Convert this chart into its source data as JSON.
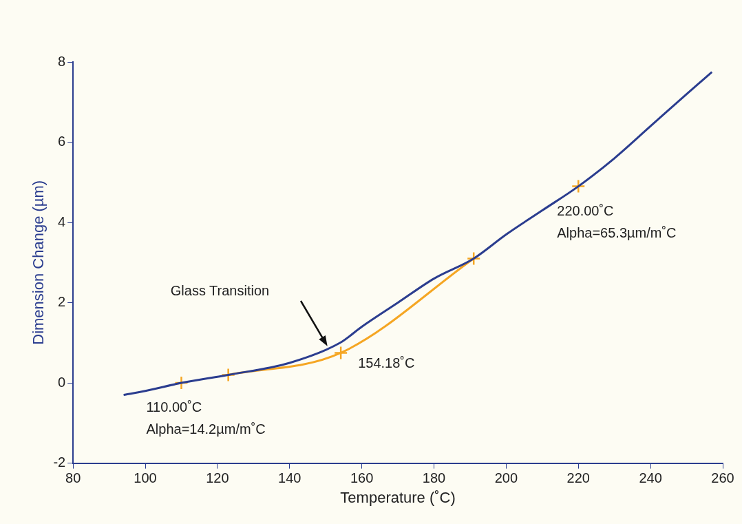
{
  "chart_data": {
    "type": "line",
    "xlabel": "Temperature (˚C)",
    "ylabel": "Dimension Change (µm)",
    "xlim": [
      80,
      260
    ],
    "xticks": [
      80,
      100,
      120,
      140,
      160,
      180,
      200,
      220,
      240,
      260
    ],
    "ylim": [
      -2,
      8
    ],
    "yticks": [
      -2,
      0,
      2,
      4,
      6,
      8
    ],
    "grid": false,
    "legend": false,
    "series": [
      {
        "color": "#2b3d8f",
        "marker": "none",
        "x": [
          94,
          100,
          110,
          123,
          140,
          154,
          160,
          170,
          180,
          191,
          200,
          210,
          220,
          230,
          240,
          250,
          257
        ],
        "values": [
          -0.3,
          -0.2,
          0,
          0.2,
          0.5,
          1.0,
          1.4,
          2.0,
          2.6,
          3.1,
          3.7,
          4.3,
          4.9,
          5.6,
          6.4,
          7.2,
          7.75
        ]
      },
      {
        "type": "line",
        "color": "#f5a623",
        "marker": "none",
        "x": [
          123,
          154.18,
          191
        ],
        "values": [
          0.2,
          0.75,
          3.1
        ]
      },
      {
        "type": "scatter",
        "color": "#f5a623",
        "marker": "cross",
        "x": [
          110,
          123,
          154.18,
          191,
          220
        ],
        "values": [
          0,
          0.2,
          0.75,
          3.1,
          4.9
        ]
      }
    ],
    "annotations": [
      {
        "text": "110.00˚C\nAlpha=14.2µm/m˚C",
        "x": 110,
        "y": 0
      },
      {
        "text": "154.18˚C",
        "x": 154.18,
        "y": 0.75
      },
      {
        "text": "220.00˚C\nAlpha=65.3µm/m˚C",
        "x": 220,
        "y": 4.9
      },
      "Glass Transition"
    ]
  }
}
